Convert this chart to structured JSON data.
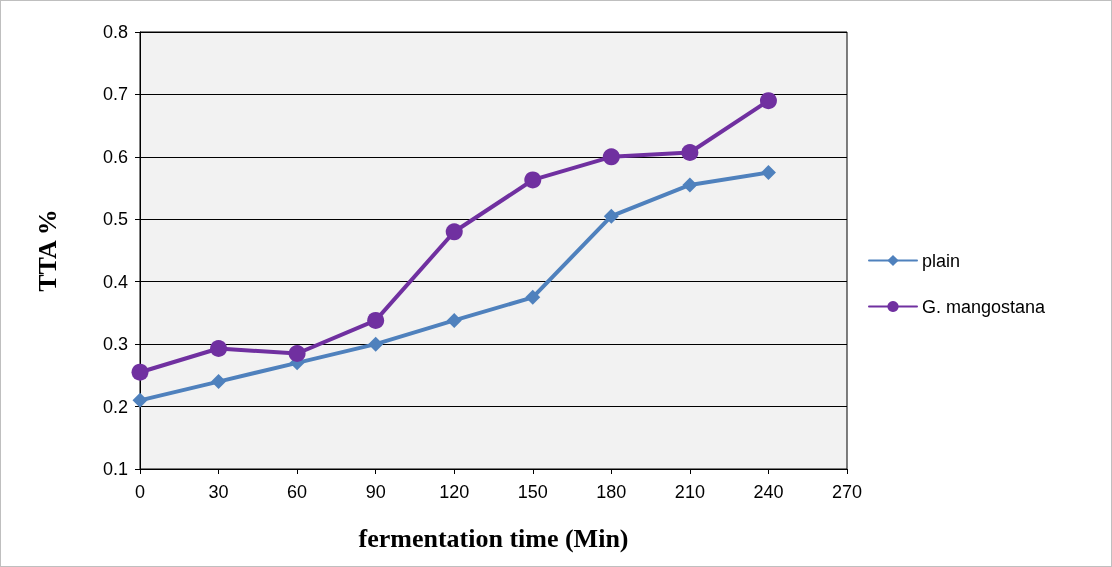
{
  "chart_data": {
    "type": "line",
    "xlabel": "fermentation time (Min)",
    "ylabel": "TTA %",
    "x": [
      0,
      30,
      60,
      90,
      120,
      150,
      180,
      210,
      240
    ],
    "series": [
      {
        "name": "plain",
        "color": "#4f81bd",
        "marker": "diamond",
        "values": [
          0.21,
          0.24,
          0.27,
          0.3,
          0.338,
          0.375,
          0.505,
          0.555,
          0.575
        ]
      },
      {
        "name": "G. mangostana",
        "color": "#7030a0",
        "marker": "circle",
        "values": [
          0.255,
          0.293,
          0.285,
          0.338,
          0.48,
          0.563,
          0.6,
          0.607,
          0.69
        ]
      }
    ],
    "xlim": [
      0,
      270
    ],
    "xticks": [
      0,
      30,
      60,
      90,
      120,
      150,
      180,
      210,
      240,
      270
    ],
    "ylim": [
      0.1,
      0.8
    ],
    "yticks": [
      0.1,
      0.2,
      0.3,
      0.4,
      0.5,
      0.6,
      0.7,
      0.8
    ],
    "grid": "y",
    "legend": "right",
    "line_style": "solid"
  }
}
